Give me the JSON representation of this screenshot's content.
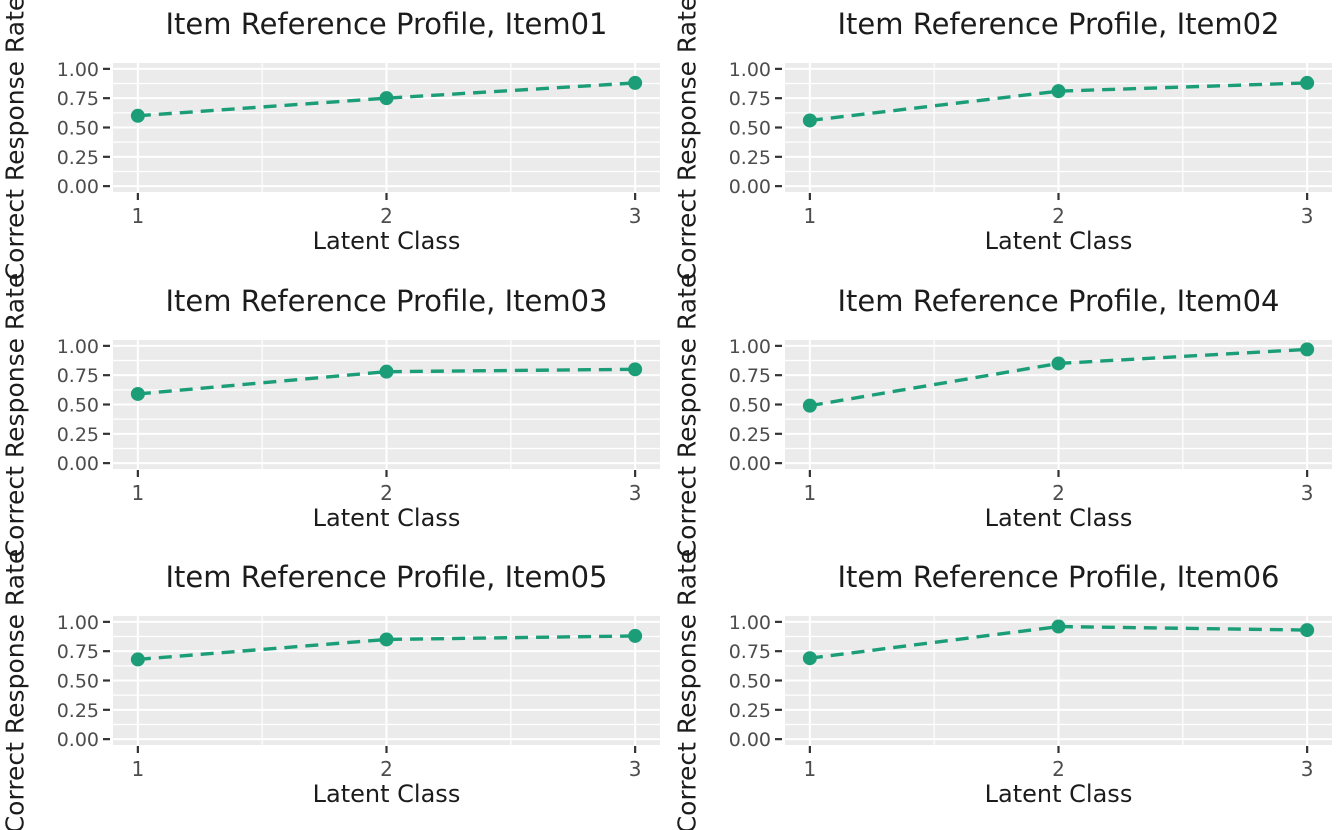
{
  "figure": {
    "xlabel": "Latent Class",
    "ylabel": "Correct Response Rate"
  },
  "style": {
    "background": "#ffffff",
    "panel_bg": "#ebebeb",
    "grid_major": "#ffffff",
    "grid_minor": "#ffffff",
    "series_color": "#1b9e77",
    "tick_color": "#333333",
    "tick_label_color": "#4d4d4d",
    "title_color": "#1c1c1c",
    "axis_label_color": "#1c1c1c"
  },
  "chart_data": [
    {
      "type": "line",
      "title": "Item Reference Profile, Item01",
      "x": [
        1,
        2,
        3
      ],
      "y": [
        0.6,
        0.75,
        0.88
      ],
      "xlabel": "Latent Class",
      "ylabel": "Correct Response Rate",
      "xlim": [
        0.9,
        3.1
      ],
      "ylim": [
        -0.05,
        1.05
      ],
      "xtick_values": [
        1,
        2,
        3
      ],
      "xtick_labels": [
        "1",
        "2",
        "3"
      ],
      "ytick_values": [
        0.0,
        0.25,
        0.5,
        0.75,
        1.0
      ],
      "ytick_labels": [
        "0.00",
        "0.25",
        "0.50",
        "0.75",
        "1.00"
      ],
      "line_style": "dashed",
      "marker": "circle",
      "color": "#1b9e77",
      "grid": true
    },
    {
      "type": "line",
      "title": "Item Reference Profile, Item02",
      "x": [
        1,
        2,
        3
      ],
      "y": [
        0.56,
        0.81,
        0.88
      ],
      "xlabel": "Latent Class",
      "ylabel": "Correct Response Rate",
      "xlim": [
        0.9,
        3.1
      ],
      "ylim": [
        -0.05,
        1.05
      ],
      "xtick_values": [
        1,
        2,
        3
      ],
      "xtick_labels": [
        "1",
        "2",
        "3"
      ],
      "ytick_values": [
        0.0,
        0.25,
        0.5,
        0.75,
        1.0
      ],
      "ytick_labels": [
        "0.00",
        "0.25",
        "0.50",
        "0.75",
        "1.00"
      ],
      "line_style": "dashed",
      "marker": "circle",
      "color": "#1b9e77",
      "grid": true
    },
    {
      "type": "line",
      "title": "Item Reference Profile, Item03",
      "x": [
        1,
        2,
        3
      ],
      "y": [
        0.59,
        0.78,
        0.8
      ],
      "xlabel": "Latent Class",
      "ylabel": "Correct Response Rate",
      "xlim": [
        0.9,
        3.1
      ],
      "ylim": [
        -0.05,
        1.05
      ],
      "xtick_values": [
        1,
        2,
        3
      ],
      "xtick_labels": [
        "1",
        "2",
        "3"
      ],
      "ytick_values": [
        0.0,
        0.25,
        0.5,
        0.75,
        1.0
      ],
      "ytick_labels": [
        "0.00",
        "0.25",
        "0.50",
        "0.75",
        "1.00"
      ],
      "line_style": "dashed",
      "marker": "circle",
      "color": "#1b9e77",
      "grid": true
    },
    {
      "type": "line",
      "title": "Item Reference Profile, Item04",
      "x": [
        1,
        2,
        3
      ],
      "y": [
        0.49,
        0.85,
        0.97
      ],
      "xlabel": "Latent Class",
      "ylabel": "Correct Response Rate",
      "xlim": [
        0.9,
        3.1
      ],
      "ylim": [
        -0.05,
        1.05
      ],
      "xtick_values": [
        1,
        2,
        3
      ],
      "xtick_labels": [
        "1",
        "2",
        "3"
      ],
      "ytick_values": [
        0.0,
        0.25,
        0.5,
        0.75,
        1.0
      ],
      "ytick_labels": [
        "0.00",
        "0.25",
        "0.50",
        "0.75",
        "1.00"
      ],
      "line_style": "dashed",
      "marker": "circle",
      "color": "#1b9e77",
      "grid": true
    },
    {
      "type": "line",
      "title": "Item Reference Profile, Item05",
      "x": [
        1,
        2,
        3
      ],
      "y": [
        0.68,
        0.85,
        0.88
      ],
      "xlabel": "Latent Class",
      "ylabel": "Correct Response Rate",
      "xlim": [
        0.9,
        3.1
      ],
      "ylim": [
        -0.05,
        1.05
      ],
      "xtick_values": [
        1,
        2,
        3
      ],
      "xtick_labels": [
        "1",
        "2",
        "3"
      ],
      "ytick_values": [
        0.0,
        0.25,
        0.5,
        0.75,
        1.0
      ],
      "ytick_labels": [
        "0.00",
        "0.25",
        "0.50",
        "0.75",
        "1.00"
      ],
      "line_style": "dashed",
      "marker": "circle",
      "color": "#1b9e77",
      "grid": true
    },
    {
      "type": "line",
      "title": "Item Reference Profile, Item06",
      "x": [
        1,
        2,
        3
      ],
      "y": [
        0.69,
        0.96,
        0.93
      ],
      "xlabel": "Latent Class",
      "ylabel": "Correct Response Rate",
      "xlim": [
        0.9,
        3.1
      ],
      "ylim": [
        -0.05,
        1.05
      ],
      "xtick_values": [
        1,
        2,
        3
      ],
      "xtick_labels": [
        "1",
        "2",
        "3"
      ],
      "ytick_values": [
        0.0,
        0.25,
        0.5,
        0.75,
        1.0
      ],
      "ytick_labels": [
        "0.00",
        "0.25",
        "0.50",
        "0.75",
        "1.00"
      ],
      "line_style": "dashed",
      "marker": "circle",
      "color": "#1b9e77",
      "grid": true
    }
  ]
}
